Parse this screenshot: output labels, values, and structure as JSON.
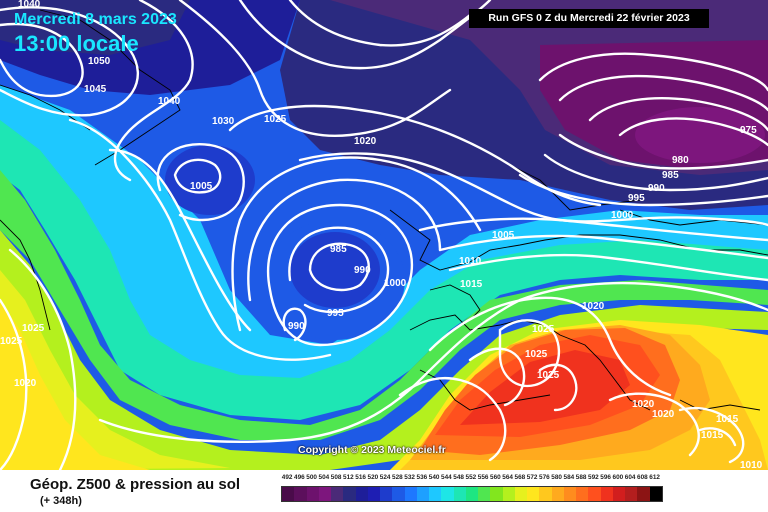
{
  "header": {
    "date": "Mercredi 8 mars 2023",
    "time": "13:00 locale"
  },
  "run_info": "Run GFS 0 Z du Mercredi 22 février 2023",
  "copyright": "Copyright © 2023 Meteociel.fr",
  "footer": {
    "product": "Géop. Z500 & pression au sol",
    "lead": "(+ 348h)"
  },
  "scale": {
    "labels": [
      "492",
      "496",
      "500",
      "504",
      "508",
      "512",
      "516",
      "520",
      "524",
      "528",
      "532",
      "536",
      "540",
      "544",
      "548",
      "552",
      "556",
      "560",
      "564",
      "568",
      "572",
      "576",
      "580",
      "584",
      "588",
      "592",
      "596",
      "600",
      "604",
      "608",
      "612"
    ],
    "colors": [
      "#4a0b4a",
      "#5c0f5c",
      "#6d126d",
      "#7d167d",
      "#4b2a78",
      "#2a2a80",
      "#1e1e99",
      "#1e1eb3",
      "#1e3ccc",
      "#1e5ae6",
      "#1e78ff",
      "#1ea0ff",
      "#1ec8ff",
      "#1ee6e6",
      "#1ee6b4",
      "#1ee682",
      "#50e650",
      "#82e61e",
      "#b4f01e",
      "#e6f01e",
      "#ffe61e",
      "#ffc81e",
      "#ffaa1e",
      "#ff8c1e",
      "#ff6e1e",
      "#ff501e",
      "#f0321e",
      "#d21e1e",
      "#b41e1e",
      "#8c1414",
      "#000000"
    ]
  },
  "isobar_labels": [
    "1040",
    "1050",
    "1045",
    "1040",
    "1030",
    "1025",
    "1020",
    "1005",
    "985",
    "990",
    "1000",
    "995",
    "990",
    "1005",
    "1010",
    "1015",
    "975",
    "980",
    "985",
    "990",
    "995",
    "1000",
    "1025",
    "1025",
    "1020",
    "1025",
    "1025",
    "1020",
    "1020",
    "1015",
    "1015",
    "1025",
    "1020",
    "1010"
  ],
  "colors": {
    "title_cyan": "#19e6ff",
    "isobar": "#ffffff"
  }
}
